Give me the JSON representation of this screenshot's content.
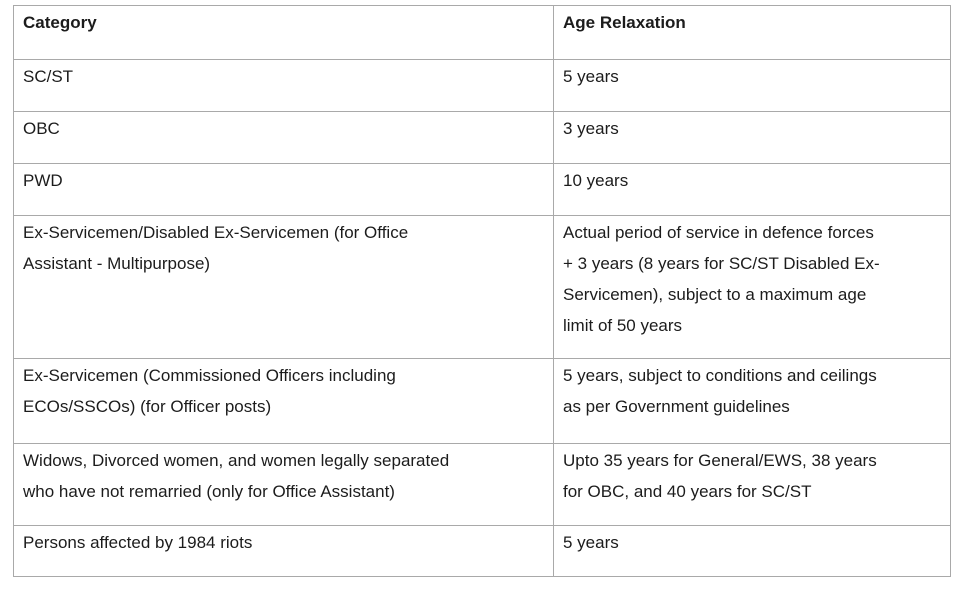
{
  "table": {
    "columns": [
      "Category",
      "Age Relaxation"
    ],
    "rows": [
      {
        "category": "SC/ST",
        "relaxation": "5 years"
      },
      {
        "category": "OBC",
        "relaxation": "3 years"
      },
      {
        "category": "PWD",
        "relaxation": "10 years"
      },
      {
        "category": "Ex-Servicemen/Disabled Ex-Servicemen (for Office\nAssistant - Multipurpose)",
        "relaxation": "Actual period of service in defence forces\n+ 3 years (8 years for SC/ST Disabled Ex-\nServicemen), subject to a maximum age\nlimit of 50 years"
      },
      {
        "category": "Ex-Servicemen (Commissioned Officers including\nECOs/SSCOs) (for Officer posts)",
        "relaxation": "5 years, subject to conditions and ceilings\nas per Government guidelines"
      },
      {
        "category": "Widows, Divorced women, and women legally separated\nwho have not remarried (only for Office Assistant)",
        "relaxation": "Upto 35 years for General/EWS, 38 years\nfor OBC, and 40 years for SC/ST"
      },
      {
        "category": "Persons affected by 1984 riots",
        "relaxation": "5 years"
      }
    ],
    "style": {
      "border_color": "#a9a9a9",
      "text_color": "#1c1c1c",
      "background_color": "#ffffff"
    }
  }
}
